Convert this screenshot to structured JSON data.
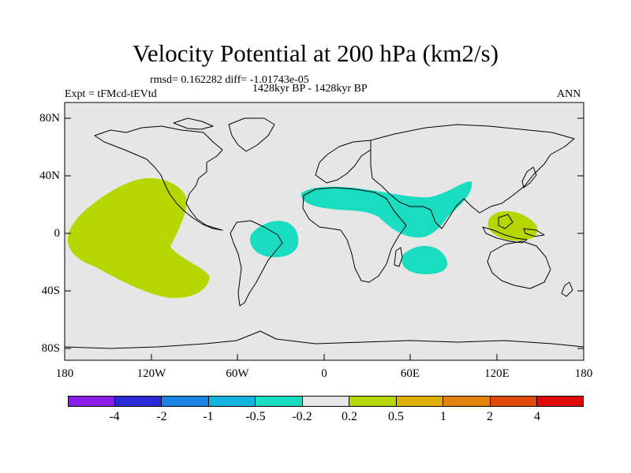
{
  "title": "Velocity Potential at 200 hPa (km2/s)",
  "stats": "rmsd= 0.162282 diff= -1.01743e-05",
  "expt": "Expt = tFMcd-tEVtd",
  "period": "1428kyr BP - 1428kyr BP",
  "season": "ANN",
  "map": {
    "lat_ticks": [
      "80N",
      "40N",
      "0",
      "40S",
      "80S"
    ],
    "lon_ticks": [
      "180",
      "120W",
      "60W",
      "0",
      "60E",
      "120E",
      "180"
    ],
    "ocean_color": "#e6e6e6",
    "regions": [
      {
        "name": "pacific-positive-anomaly",
        "level": "0.2 to 0.5",
        "color": "#b6d600"
      },
      {
        "name": "southern-atlantic-negative-anomaly",
        "level": "-0.5 to -0.2",
        "color": "#19dcc0"
      },
      {
        "name": "north-africa-asia-negative-anomaly",
        "level": "-0.5 to -0.2",
        "color": "#19dcc0"
      },
      {
        "name": "indian-ocean-negative-anomaly",
        "level": "-0.5 to -0.2",
        "color": "#19dcc0"
      },
      {
        "name": "maritime-continent-positive-anomaly",
        "level": "0.2 to 0.5",
        "color": "#b6d600"
      }
    ]
  },
  "colorbar": {
    "colors": [
      "#8a1ee8",
      "#2b28d8",
      "#1a82e0",
      "#14b4e0",
      "#19dcc0",
      "#e6e6e6",
      "#b6d600",
      "#e0b000",
      "#e0820c",
      "#e04a0a",
      "#e00a0a"
    ],
    "labels": [
      "-4",
      "-2",
      "-1",
      "-0.5",
      "-0.2",
      "0.2",
      "0.5",
      "1",
      "2",
      "4"
    ]
  }
}
